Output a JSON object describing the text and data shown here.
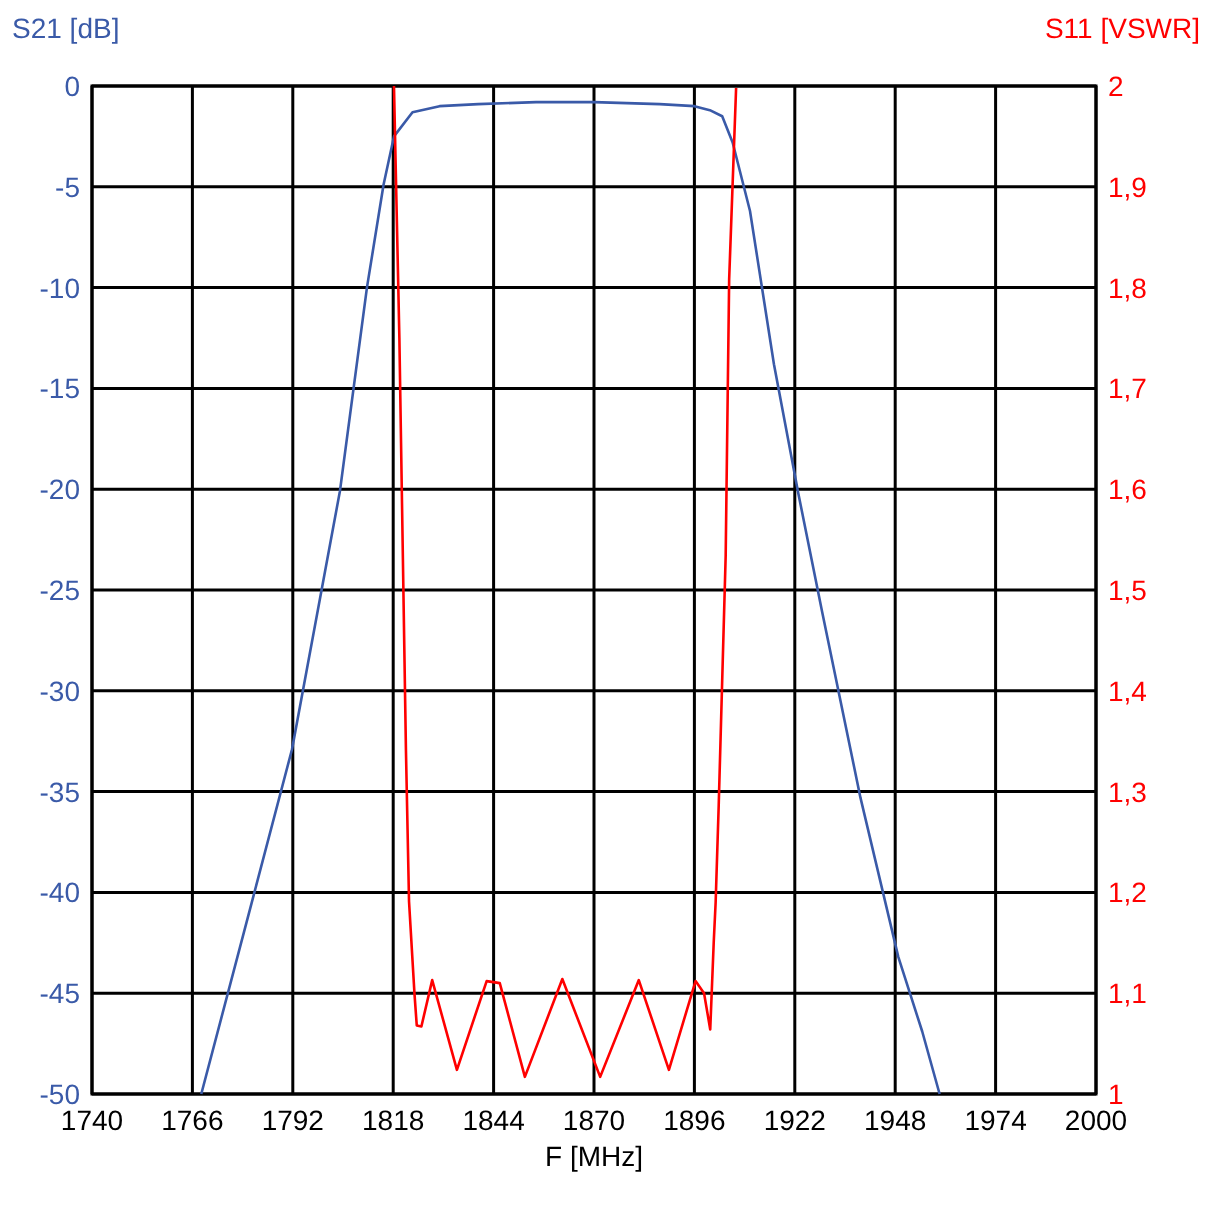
{
  "chart_data": {
    "type": "line",
    "xlabel": "F [MHz]",
    "ylabel": "S21 [dB]",
    "y2label": "S11 [VSWR]",
    "grid": true,
    "marker": "none",
    "line_style": "solid",
    "xlim": [
      1740,
      2000
    ],
    "xticks": [
      1740,
      1766,
      1792,
      1818,
      1844,
      1870,
      1896,
      1922,
      1948,
      1974,
      2000
    ],
    "ylim": [
      -50,
      0
    ],
    "yticks": [
      -50,
      -45,
      -40,
      -35,
      -30,
      -25,
      -20,
      -15,
      -10,
      -5,
      0
    ],
    "y2lim": [
      1,
      2
    ],
    "y2ticks": [
      1,
      {
        "value": 1.1,
        "label": "1,1"
      },
      {
        "value": 1.2,
        "label": "1,2"
      },
      {
        "value": 1.3,
        "label": "1,3"
      },
      {
        "value": 1.4,
        "label": "1,4"
      },
      {
        "value": 1.5,
        "label": "1,5"
      },
      {
        "value": 1.6,
        "label": "1,6"
      },
      {
        "value": 1.7,
        "label": "1,7"
      },
      {
        "value": 1.8,
        "label": "1,8"
      },
      {
        "value": 1.9,
        "label": "1,9"
      },
      2
    ],
    "series": [
      {
        "color": "#3a5aa8",
        "x": [
          1768.3,
          1780,
          1791.8,
          1804.2,
          1811.2,
          1815.5,
          1818.2,
          1823,
          1830,
          1840,
          1855,
          1870,
          1887,
          1896,
          1900,
          1903.2,
          1905.9,
          1910.4,
          1916.6,
          1922.9,
          1929.1,
          1939,
          1948.8,
          1955,
          1959.5
        ],
        "values": [
          -50,
          -41.5,
          -32.9,
          -20.1,
          -10,
          -4.9,
          -2.5,
          -1.3,
          -1,
          -0.9,
          -0.8,
          -0.8,
          -0.9,
          -1,
          -1.2,
          -1.5,
          -2.8,
          -6.2,
          -13.8,
          -20.2,
          -26.1,
          -35.3,
          -43.2,
          -46.9,
          -50
        ]
      },
      {
        "color": "#ff0000",
        "axis": "y2",
        "x": [
          1818.2,
          1819.6,
          1821.3,
          1822.1,
          1823.5,
          1824.1,
          1825.3,
          1828.1,
          1834.5,
          1842.2,
          1845.6,
          1852.1,
          1861.8,
          1871.6,
          1881.6,
          1889.4,
          1896.3,
          1898.5,
          1900.1,
          1901,
          1901.5,
          1902.3,
          1904.1,
          1905,
          1906.8
        ],
        "values": [
          2,
          1.75,
          1.341,
          1.191,
          1.1,
          1.068,
          1.067,
          1.113,
          1.024,
          1.112,
          1.11,
          1.017,
          1.114,
          1.017,
          1.113,
          1.024,
          1.112,
          1.1,
          1.064,
          1.15,
          1.19,
          1.287,
          1.534,
          1.808,
          1.998
        ]
      }
    ]
  }
}
